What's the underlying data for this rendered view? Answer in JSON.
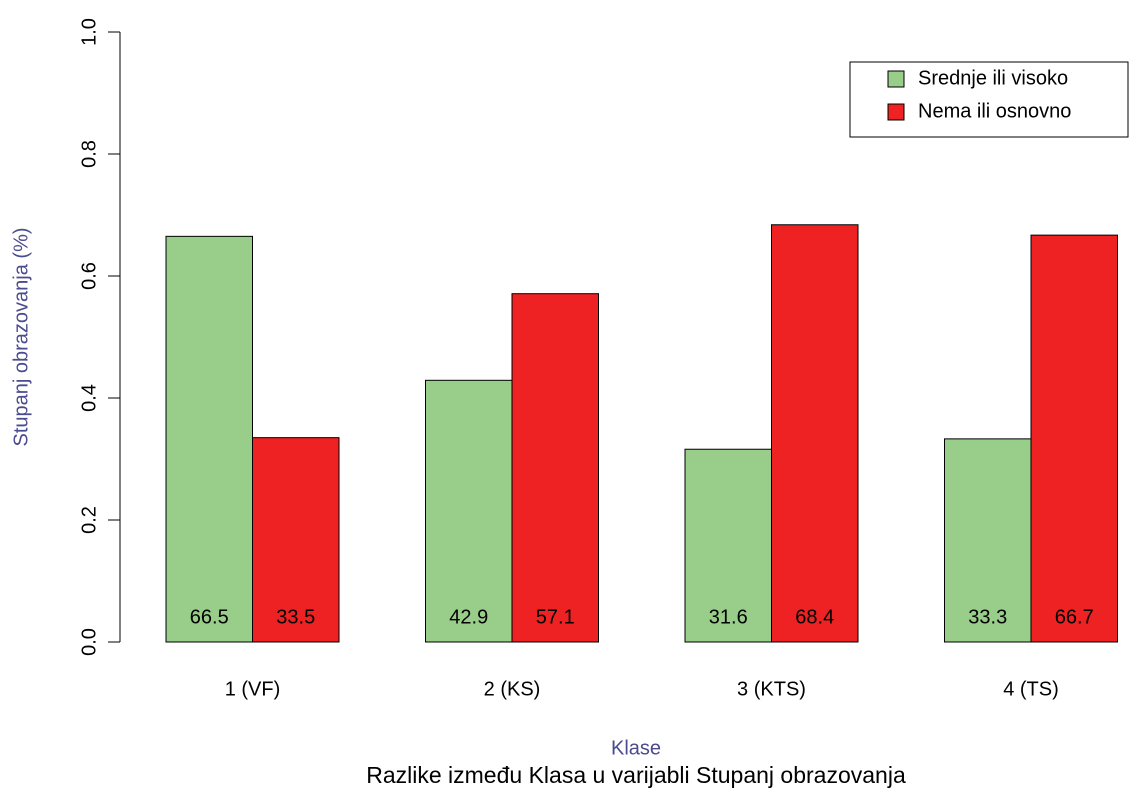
{
  "chart_data": {
    "type": "bar",
    "title": "Razlike između Klasa u varijabli Stupanj obrazovanja",
    "x_label": "Klase",
    "y_label": "Stupanj obrazovanja (%)",
    "categories": [
      "1 (VF)",
      "2 (KS)",
      "3 (KTS)",
      "4 (TS)"
    ],
    "series": [
      {
        "name": "Srednje ili visoko",
        "color": "#99cd8a",
        "values": [
          0.665,
          0.429,
          0.316,
          0.333
        ],
        "value_labels": [
          "66.5",
          "42.9",
          "31.6",
          "33.3"
        ]
      },
      {
        "name": "Nema ili osnovno",
        "color": "#ee2222",
        "values": [
          0.335,
          0.571,
          0.684,
          0.667
        ],
        "value_labels": [
          "33.5",
          "57.1",
          "68.4",
          "66.7"
        ]
      }
    ],
    "ylim": [
      0,
      1
    ],
    "yticks": [
      {
        "value": 0,
        "label": "0.0"
      },
      {
        "value": 0.2,
        "label": "0.2"
      },
      {
        "value": 0.4,
        "label": "0.4"
      },
      {
        "value": 0.6,
        "label": "0.6"
      },
      {
        "value": 0.8,
        "label": "0.8"
      },
      {
        "value": 1,
        "label": "1.0"
      }
    ],
    "legend": "top-right"
  }
}
